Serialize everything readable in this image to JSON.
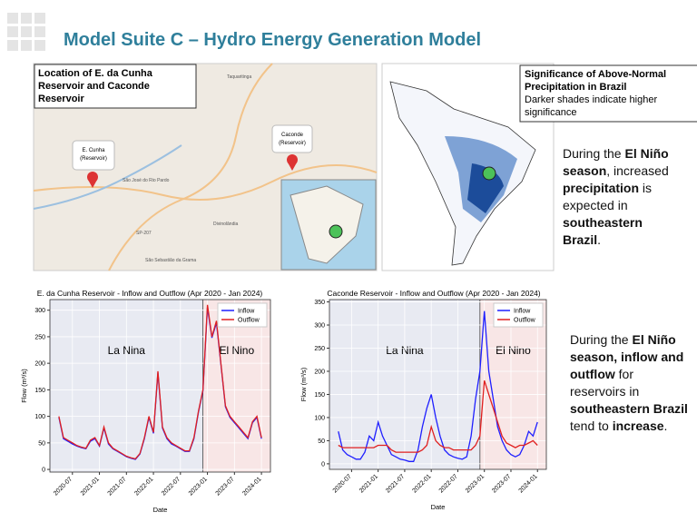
{
  "header": {
    "title": "Model Suite C – Hydro Energy Generation Model"
  },
  "map_left": {
    "caption": "Location of E. da Cunha Reservoir and Caconde Reservoir",
    "labels": [
      "E. Cunha",
      "(Reservoir)",
      "Caconde",
      "(Reservoir)",
      "São José do Rio Pardo",
      "Divinolândia",
      "São Sebastião da Grama",
      "SP-207",
      "Taquaritinga"
    ]
  },
  "map_right": {
    "caption_title": "Significance of Above-Normal Precipitation in Brazil",
    "caption_text": "Darker shades indicate higher significance"
  },
  "text_top": [
    {
      "text": "During the ",
      "bold": false
    },
    {
      "text": "El Niño season",
      "bold": true
    },
    {
      "text": ", increased ",
      "bold": false
    },
    {
      "text": "precipitation",
      "bold": true
    },
    {
      "text": " is expected in ",
      "bold": false
    },
    {
      "text": "southeastern Brazil",
      "bold": true
    },
    {
      "text": ".",
      "bold": false
    }
  ],
  "text_bottom": [
    {
      "text": "During the ",
      "bold": false
    },
    {
      "text": "El Niño season, inflow and outflow",
      "bold": true
    },
    {
      "text": " for reservoirs in ",
      "bold": false
    },
    {
      "text": "southeastern Brazil",
      "bold": true
    },
    {
      "text": " tend to ",
      "bold": false
    },
    {
      "text": "increase",
      "bold": true
    },
    {
      "text": ".",
      "bold": false
    }
  ],
  "chart_data": [
    {
      "type": "line",
      "title": "E. da Cunha Reservoir - Inflow and Outflow (Apr 2020 - Jan 2024)",
      "xlabel": "Date",
      "ylabel": "Flow (m³/s)",
      "x": [
        "2020-04",
        "2020-05",
        "2020-06",
        "2020-07",
        "2020-08",
        "2020-09",
        "2020-10",
        "2020-11",
        "2020-12",
        "2021-01",
        "2021-02",
        "2021-03",
        "2021-04",
        "2021-05",
        "2021-06",
        "2021-07",
        "2021-08",
        "2021-09",
        "2021-10",
        "2021-11",
        "2021-12",
        "2022-01",
        "2022-02",
        "2022-03",
        "2022-04",
        "2022-05",
        "2022-06",
        "2022-07",
        "2022-08",
        "2022-09",
        "2022-10",
        "2022-11",
        "2022-12",
        "2023-01",
        "2023-02",
        "2023-03",
        "2023-04",
        "2023-05",
        "2023-06",
        "2023-07",
        "2023-08",
        "2023-09",
        "2023-10",
        "2023-11",
        "2023-12",
        "2024-01"
      ],
      "series": [
        {
          "name": "Inflow",
          "color": "#1f1fff",
          "values": [
            98,
            58,
            53,
            48,
            44,
            41,
            39,
            53,
            58,
            44,
            78,
            48,
            39,
            34,
            29,
            24,
            21,
            19,
            29,
            58,
            98,
            68,
            182,
            78,
            58,
            48,
            44,
            39,
            34,
            34,
            58,
            108,
            148,
            305,
            248,
            276,
            198,
            118,
            98,
            88,
            78,
            68,
            58,
            88,
            98,
            58
          ]
        },
        {
          "name": "Outflow",
          "color": "#e02020",
          "values": [
            100,
            60,
            55,
            50,
            45,
            42,
            40,
            55,
            60,
            45,
            80,
            50,
            40,
            35,
            30,
            25,
            22,
            20,
            30,
            60,
            100,
            70,
            185,
            80,
            60,
            50,
            45,
            40,
            35,
            35,
            60,
            110,
            150,
            310,
            250,
            280,
            200,
            120,
            100,
            90,
            80,
            70,
            60,
            90,
            100,
            60
          ]
        }
      ],
      "xlim": [
        "2020-02",
        "2024-03"
      ],
      "ylim": [
        -5,
        320
      ],
      "yticks": [
        0,
        50,
        100,
        150,
        200,
        250,
        300
      ],
      "xticks": [
        "2020-07",
        "2021-01",
        "2021-07",
        "2022-01",
        "2022-07",
        "2023-01",
        "2023-07",
        "2024-01"
      ],
      "grid": true,
      "legend": "upper right",
      "regions": [
        {
          "label": "La Nina",
          "start": "2020-02",
          "end": "2022-12",
          "color": "#e8eaf2"
        },
        {
          "label": "El Nino",
          "start": "2022-12",
          "end": "2024-03",
          "color": "#f8e6e6"
        }
      ]
    },
    {
      "type": "line",
      "title": "Caconde Reservoir - Inflow and Outflow (Apr 2020 - Jan 2024)",
      "xlabel": "Date",
      "ylabel": "Flow (m³/s)",
      "x": [
        "2020-04",
        "2020-05",
        "2020-06",
        "2020-07",
        "2020-08",
        "2020-09",
        "2020-10",
        "2020-11",
        "2020-12",
        "2021-01",
        "2021-02",
        "2021-03",
        "2021-04",
        "2021-05",
        "2021-06",
        "2021-07",
        "2021-08",
        "2021-09",
        "2021-10",
        "2021-11",
        "2021-12",
        "2022-01",
        "2022-02",
        "2022-03",
        "2022-04",
        "2022-05",
        "2022-06",
        "2022-07",
        "2022-08",
        "2022-09",
        "2022-10",
        "2022-11",
        "2022-12",
        "2023-01",
        "2023-02",
        "2023-03",
        "2023-04",
        "2023-05",
        "2023-06",
        "2023-07",
        "2023-08",
        "2023-09",
        "2023-10",
        "2023-11",
        "2023-12",
        "2024-01"
      ],
      "series": [
        {
          "name": "Inflow",
          "color": "#1f1fff",
          "values": [
            70,
            30,
            20,
            15,
            10,
            10,
            25,
            60,
            50,
            90,
            60,
            40,
            20,
            15,
            10,
            8,
            5,
            5,
            30,
            80,
            120,
            150,
            100,
            60,
            30,
            20,
            15,
            12,
            10,
            15,
            60,
            140,
            200,
            330,
            200,
            140,
            80,
            50,
            30,
            20,
            15,
            20,
            40,
            70,
            60,
            90
          ]
        },
        {
          "name": "Outflow",
          "color": "#e02020",
          "values": [
            40,
            35,
            35,
            35,
            35,
            35,
            35,
            35,
            35,
            40,
            40,
            40,
            30,
            25,
            25,
            25,
            25,
            25,
            25,
            30,
            40,
            80,
            50,
            40,
            35,
            35,
            30,
            30,
            30,
            30,
            30,
            40,
            60,
            180,
            150,
            120,
            90,
            60,
            45,
            40,
            35,
            40,
            40,
            45,
            50,
            40
          ]
        }
      ],
      "xlim": [
        "2020-02",
        "2024-03"
      ],
      "ylim": [
        -12,
        355
      ],
      "yticks": [
        0,
        50,
        100,
        150,
        200,
        250,
        300,
        350
      ],
      "xticks": [
        "2020-07",
        "2021-01",
        "2021-07",
        "2022-01",
        "2022-07",
        "2023-01",
        "2023-07",
        "2024-01"
      ],
      "grid": true,
      "legend": "upper right",
      "regions": [
        {
          "label": "La Nina",
          "start": "2020-02",
          "end": "2022-12",
          "color": "#e8eaf2"
        },
        {
          "label": "El Nino",
          "start": "2022-12",
          "end": "2024-03",
          "color": "#f8e6e6"
        }
      ]
    }
  ]
}
